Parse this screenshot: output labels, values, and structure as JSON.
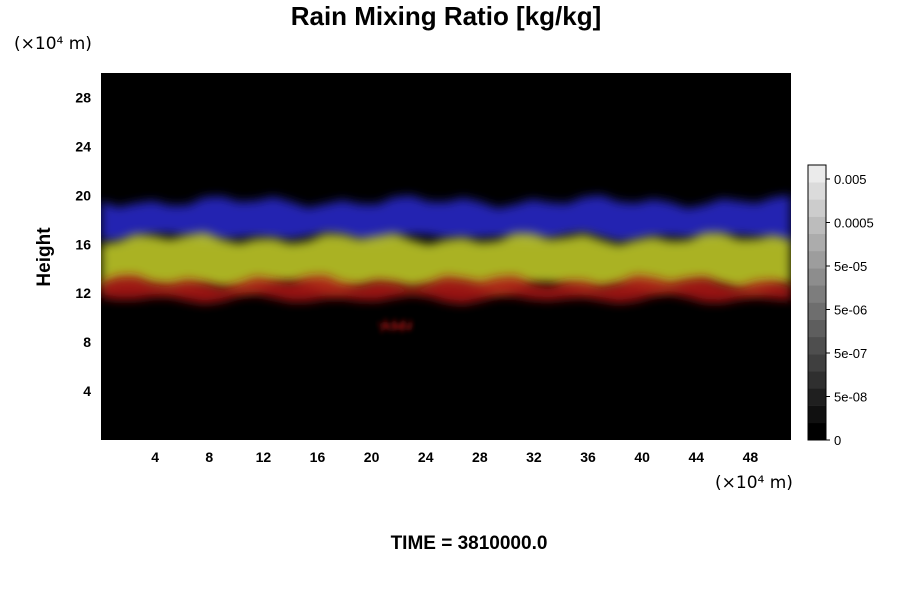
{
  "chart_data": {
    "type": "heatmap",
    "title": "Rain Mixing Ratio [kg/kg]",
    "ylabel": "Height",
    "xlabel": "",
    "x_unit": "(×10⁴ m)",
    "y_unit": "(×10⁴ m)",
    "xlim": [
      0,
      51
    ],
    "ylim": [
      0,
      30
    ],
    "x_ticks": [
      4,
      8,
      12,
      16,
      20,
      24,
      28,
      32,
      36,
      40,
      44,
      48
    ],
    "y_ticks": [
      4,
      8,
      12,
      16,
      20,
      24,
      28
    ],
    "colorbar": {
      "tick_labels": [
        "0.005",
        "0.0005",
        "5e-05",
        "5e-06",
        "5e-07",
        "5e-08",
        "0"
      ],
      "levels": 16
    },
    "layers": [
      {
        "color": "#2b2bd0",
        "x": [
          0,
          51
        ],
        "y_range": [
          16.5,
          19.5
        ]
      },
      {
        "color": "#c8d22a",
        "x": [
          0,
          51
        ],
        "y_range": [
          12.5,
          16.5
        ]
      },
      {
        "color": "#b01414",
        "x": [
          0,
          51
        ],
        "y_range": [
          11.5,
          13
        ]
      },
      {
        "color": "#b01414",
        "x": [
          20.5,
          23
        ],
        "y_range": [
          9.1,
          9.5
        ]
      }
    ],
    "annotation": "TIME = 3810000.0"
  }
}
